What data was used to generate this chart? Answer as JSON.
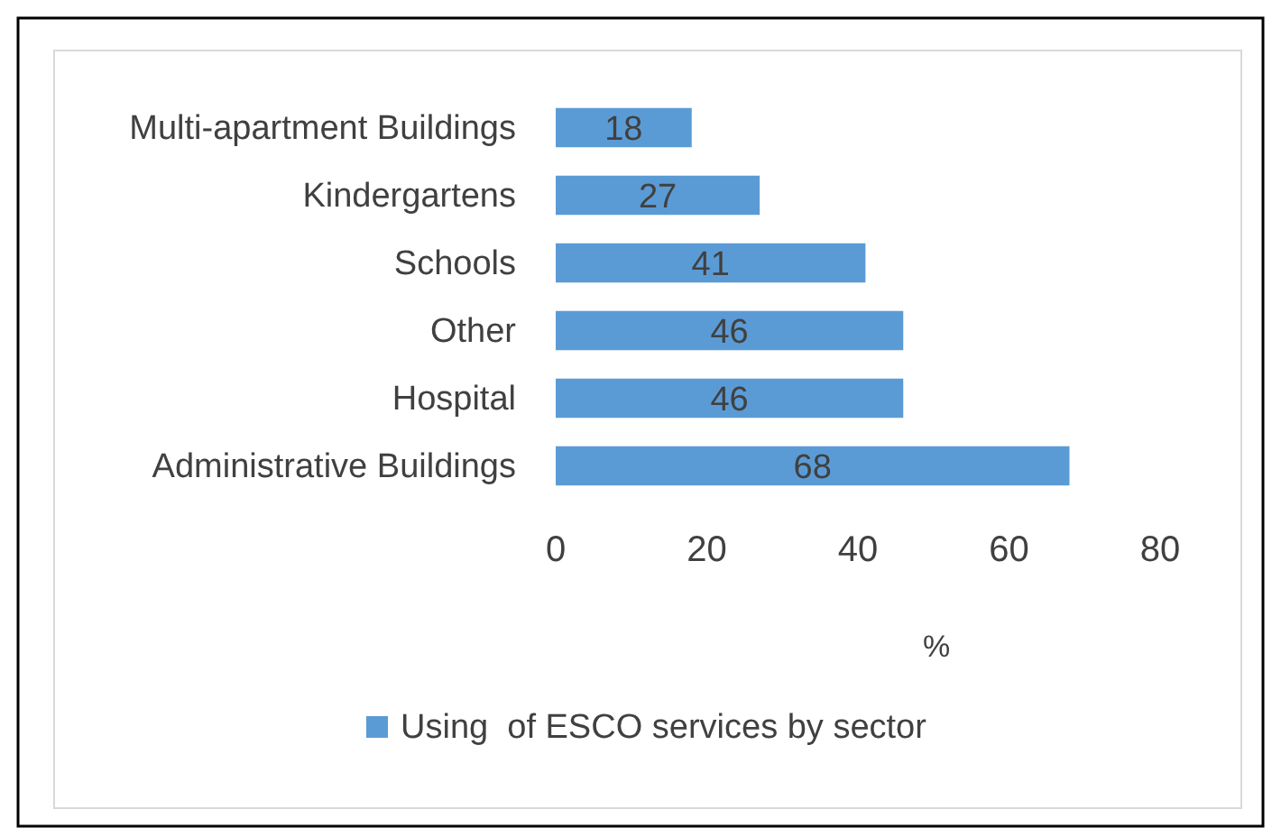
{
  "chart_data": {
    "type": "bar",
    "orientation": "horizontal",
    "categories": [
      "Multi-apartment Buildings",
      "Kindergartens",
      "Schools",
      "Other",
      "Hospital",
      "Administrative Buildings"
    ],
    "series": [
      {
        "name": "Using  of ESCO services by sector",
        "color": "#5b9bd5",
        "values": [
          18,
          27,
          41,
          46,
          46,
          68
        ]
      }
    ],
    "xlim": [
      0,
      80
    ],
    "xticks": [
      0,
      20,
      40,
      60,
      80
    ],
    "xlabel": "%",
    "data_labels": true,
    "grid": false,
    "legend": "bottom"
  }
}
